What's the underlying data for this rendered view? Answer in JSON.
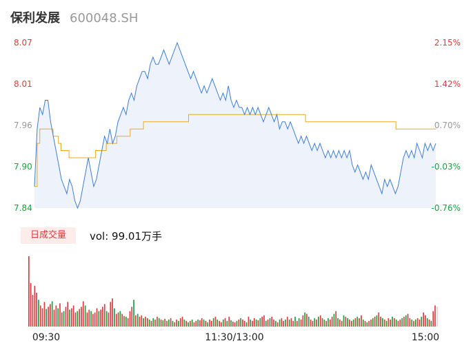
{
  "header": {
    "name": "保利发展",
    "code": "600048.SH"
  },
  "colors": {
    "price_line": "#3b7ddd",
    "avg_line": "#f0a81c",
    "area_fill": "#eef3fb",
    "up": "#e5383b",
    "down": "#12a53d",
    "neutral": "#999999"
  },
  "volume_panel": {
    "tab_label": "日成交量",
    "vol_text": "vol: 99.01万手"
  },
  "chart_data": [
    {
      "type": "line",
      "time_labels": [
        "09:30",
        "11:30/13:00",
        "15:00"
      ],
      "y_ticks": [
        "8.07",
        "8.01",
        "7.96",
        "7.90",
        "7.84"
      ],
      "pct_ticks": [
        "2.15%",
        "1.42%",
        "0.70%",
        "-0.03%",
        "-0.76%"
      ],
      "ylim": [
        7.84,
        8.07
      ],
      "prev_close": 7.9,
      "series": [
        {
          "key": "price",
          "values": [
            7.87,
            7.95,
            7.98,
            7.97,
            7.99,
            7.99,
            7.96,
            7.94,
            7.92,
            7.9,
            7.88,
            7.87,
            7.86,
            7.88,
            7.87,
            7.85,
            7.84,
            7.85,
            7.87,
            7.89,
            7.91,
            7.89,
            7.87,
            7.88,
            7.9,
            7.92,
            7.94,
            7.93,
            7.95,
            7.93,
            7.94,
            7.96,
            7.97,
            7.98,
            7.97,
            7.99,
            8,
            7.99,
            8.01,
            8.02,
            8.03,
            8.03,
            8.02,
            8.04,
            8.05,
            8.04,
            8.04,
            8.05,
            8.06,
            8.05,
            8.04,
            8.05,
            8.06,
            8.07,
            8.06,
            8.05,
            8.04,
            8.03,
            8.02,
            8.03,
            8.02,
            8.01,
            8.0,
            8.01,
            8.0,
            8.01,
            8.02,
            8.01,
            8.0,
            7.99,
            8.0,
            7.99,
            8.01,
            7.99,
            7.98,
            7.99,
            7.98,
            7.98,
            7.97,
            7.98,
            7.97,
            7.98,
            7.97,
            7.98,
            7.97,
            7.96,
            7.97,
            7.98,
            7.97,
            7.96,
            7.97,
            7.95,
            7.96,
            7.96,
            7.95,
            7.96,
            7.95,
            7.94,
            7.93,
            7.94,
            7.93,
            7.94,
            7.93,
            7.92,
            7.93,
            7.92,
            7.93,
            7.92,
            7.91,
            7.92,
            7.91,
            7.92,
            7.91,
            7.92,
            7.91,
            7.92,
            7.91,
            7.92,
            7.9,
            7.89,
            7.9,
            7.89,
            7.88,
            7.89,
            7.88,
            7.9,
            7.89,
            7.88,
            7.87,
            7.86,
            7.88,
            7.87,
            7.88,
            7.87,
            7.86,
            7.87,
            7.89,
            7.91,
            7.92,
            7.91,
            7.92,
            7.91,
            7.93,
            7.92,
            7.91,
            7.93,
            7.92,
            7.93,
            7.92,
            7.93
          ]
        },
        {
          "key": "avg",
          "values": [
            7.87,
            7.93,
            7.95,
            7.95,
            7.95,
            7.95,
            7.95,
            7.94,
            7.94,
            7.93,
            7.92,
            7.92,
            7.92,
            7.91,
            7.91,
            7.91,
            7.91,
            7.91,
            7.91,
            7.91,
            7.91,
            7.91,
            7.91,
            7.92,
            7.92,
            7.92,
            7.92,
            7.93,
            7.93,
            7.93,
            7.93,
            7.94,
            7.94,
            7.94,
            7.94,
            7.94,
            7.95,
            7.95,
            7.95,
            7.95,
            7.95,
            7.96,
            7.96,
            7.96,
            7.96,
            7.96,
            7.96,
            7.96,
            7.96,
            7.96,
            7.96,
            7.96,
            7.96,
            7.96,
            7.96,
            7.96,
            7.96,
            7.96,
            7.97,
            7.97,
            7.97,
            7.97,
            7.97,
            7.97,
            7.97,
            7.97,
            7.97,
            7.97,
            7.97,
            7.97,
            7.97,
            7.97,
            7.97,
            7.97,
            7.97,
            7.97,
            7.97,
            7.97,
            7.97,
            7.97,
            7.97,
            7.97,
            7.97,
            7.97,
            7.97,
            7.97,
            7.97,
            7.97,
            7.97,
            7.97,
            7.97,
            7.97,
            7.97,
            7.97,
            7.97,
            7.97,
            7.97,
            7.97,
            7.97,
            7.97,
            7.97,
            7.97,
            7.96,
            7.96,
            7.96,
            7.96,
            7.96,
            7.96,
            7.96,
            7.96,
            7.96,
            7.96,
            7.96,
            7.96,
            7.96,
            7.96,
            7.96,
            7.96,
            7.96,
            7.96,
            7.96,
            7.96,
            7.96,
            7.96,
            7.96,
            7.96,
            7.96,
            7.96,
            7.96,
            7.96,
            7.96,
            7.96,
            7.96,
            7.96,
            7.96,
            7.96,
            7.95,
            7.95,
            7.95,
            7.95,
            7.95,
            7.95,
            7.95,
            7.95,
            7.95,
            7.95,
            7.95,
            7.95,
            7.95,
            7.95,
            7.95,
            7.95
          ]
        }
      ]
    },
    {
      "type": "bar",
      "title": "日成交量",
      "values": [
        100,
        62,
        45,
        58,
        48,
        38,
        30,
        26,
        35,
        25,
        28,
        32,
        36,
        24,
        30,
        26,
        33,
        20,
        22,
        28,
        35,
        24,
        26,
        30,
        20,
        22,
        25,
        28,
        36,
        30,
        20,
        24,
        22,
        18,
        20,
        26,
        22,
        24,
        28,
        32,
        22,
        20,
        35,
        40,
        26,
        18,
        20,
        22,
        18,
        15,
        14,
        12,
        22,
        28,
        38,
        16,
        18,
        14,
        16,
        12,
        14,
        12,
        10,
        8,
        12,
        10,
        14,
        12,
        10,
        9,
        11,
        8,
        10,
        12,
        8,
        6,
        10,
        8,
        12,
        14,
        10,
        8,
        6,
        8,
        10,
        6,
        8,
        10,
        9,
        12,
        10,
        8,
        6,
        10,
        8,
        12,
        14,
        10,
        8,
        6,
        10,
        12,
        8,
        14,
        9,
        7,
        6,
        8,
        10,
        12,
        10,
        8,
        6,
        14,
        10,
        8,
        12,
        10,
        9,
        12,
        14,
        16,
        8,
        10,
        12,
        14,
        10,
        8,
        6,
        10,
        12,
        8,
        10,
        14,
        10,
        12,
        8,
        14,
        8,
        12,
        10,
        16,
        20,
        18,
        14,
        10,
        8,
        12,
        10,
        14,
        16,
        12,
        10,
        8,
        12,
        10,
        14,
        18,
        22,
        12,
        10,
        8,
        16,
        14,
        12,
        10,
        8,
        10,
        12,
        14,
        12,
        16,
        10,
        8,
        6,
        8,
        10,
        12,
        14,
        16,
        20,
        14,
        12,
        10,
        8,
        12,
        10,
        14,
        12,
        10,
        8,
        10,
        12,
        14,
        16,
        18,
        12,
        10,
        8,
        10,
        12,
        10,
        14,
        20,
        16,
        12,
        10,
        8,
        22,
        30
      ],
      "colors": [
        "up",
        "up",
        "up",
        "up",
        "up",
        "down",
        "up",
        "up",
        "up",
        "down",
        "up",
        "up",
        "down",
        "up",
        "up",
        "down",
        "up",
        "up",
        "down",
        "up",
        "up",
        "down",
        "up",
        "up",
        "up",
        "down",
        "up",
        "up",
        "up",
        "down",
        "up",
        "up",
        "down",
        "up",
        "up",
        "up",
        "down",
        "up",
        "up",
        "up",
        "down",
        "up",
        "up",
        "up",
        "down",
        "up",
        "up",
        "down",
        "up",
        "up",
        "down",
        "up",
        "up",
        "up",
        "down",
        "up",
        "down",
        "up",
        "up",
        "down",
        "up",
        "up",
        "down",
        "up",
        "down",
        "up",
        "up",
        "down",
        "up",
        "down",
        "up",
        "up",
        "down",
        "up",
        "down",
        "up",
        "up",
        "down",
        "up",
        "up",
        "down",
        "up",
        "down",
        "up",
        "down",
        "up",
        "up",
        "down",
        "up",
        "up",
        "down",
        "up",
        "down",
        "up",
        "up",
        "down",
        "up",
        "down",
        "up",
        "up",
        "down",
        "up",
        "down",
        "up",
        "down",
        "up",
        "up",
        "down",
        "up",
        "down",
        "up",
        "up",
        "down",
        "up",
        "down",
        "up",
        "up",
        "down",
        "up",
        "down",
        "up",
        "up",
        "down",
        "up",
        "down",
        "up",
        "up",
        "down",
        "up",
        "down",
        "up",
        "up",
        "down",
        "up",
        "down",
        "up",
        "up",
        "down",
        "up",
        "down",
        "up",
        "up",
        "down",
        "up",
        "down",
        "up",
        "up",
        "down",
        "up",
        "down",
        "up",
        "up",
        "down",
        "up",
        "down",
        "up",
        "up",
        "down",
        "up",
        "down",
        "up",
        "up",
        "down",
        "up",
        "down",
        "up",
        "up",
        "down",
        "up",
        "down",
        "up",
        "up",
        "down",
        "up",
        "down",
        "up",
        "up",
        "down",
        "up",
        "down",
        "up",
        "up",
        "down",
        "up",
        "down",
        "up",
        "up",
        "down",
        "up",
        "down",
        "up",
        "up",
        "down",
        "up",
        "down",
        "up",
        "up",
        "down",
        "up",
        "down",
        "up",
        "up",
        "down",
        "up",
        "up",
        "down",
        "up",
        "down",
        "up",
        "up"
      ]
    }
  ]
}
